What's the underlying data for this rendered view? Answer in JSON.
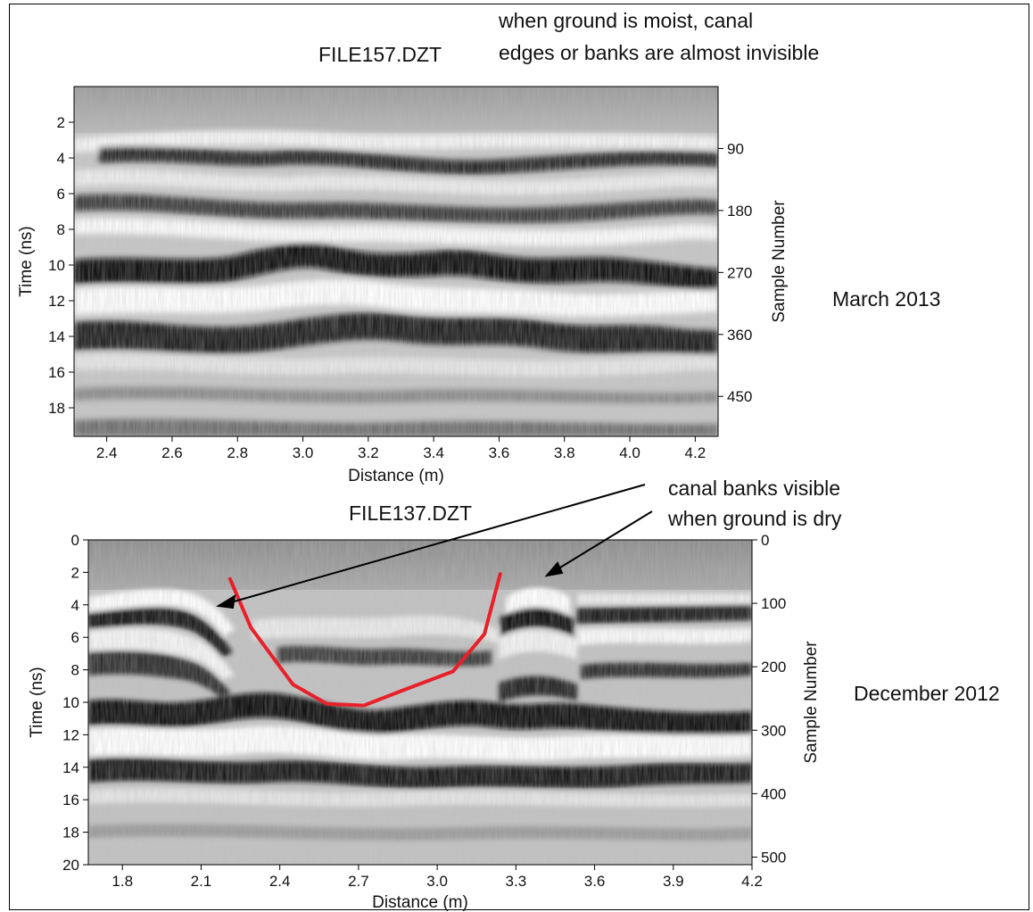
{
  "chart_data": [
    {
      "type": "heatmap",
      "title": "FILE157.DZT",
      "side_label": "March 2013",
      "annotation": [
        "when ground is moist, canal",
        "edges or banks are almost invisible"
      ],
      "xlabel": "Distance (m)",
      "ylabel": "Time (ns)",
      "y2label": "Sample Number",
      "xlim": [
        2.3,
        4.27
      ],
      "ylim": [
        0,
        19.6
      ],
      "x_ticks": [
        "2.4",
        "2.6",
        "2.8",
        "3.0",
        "3.2",
        "3.4",
        "3.6",
        "3.8",
        "4.0",
        "4.2"
      ],
      "y_ticks": [
        "2",
        "4",
        "6",
        "8",
        "10",
        "12",
        "14",
        "16",
        "18"
      ],
      "y2_ticks": [
        "90",
        "180",
        "270",
        "360",
        "450"
      ]
    },
    {
      "type": "heatmap",
      "title": "FILE137.DZT",
      "side_label": "December 2012",
      "annotation": [
        "canal banks visible",
        "when ground is dry"
      ],
      "xlabel": "Distance (m)",
      "ylabel": "Time (ns)",
      "y2label": "Sample Number",
      "xlim": [
        1.67,
        4.2
      ],
      "ylim": [
        0,
        20
      ],
      "x_ticks": [
        "1.8",
        "2.1",
        "2.4",
        "2.7",
        "3.0",
        "3.3",
        "3.6",
        "3.9",
        "4.2"
      ],
      "y_ticks": [
        "0",
        "2",
        "4",
        "6",
        "8",
        "10",
        "12",
        "14",
        "16",
        "18",
        "20"
      ],
      "y2_ticks": [
        "0",
        "100",
        "200",
        "300",
        "400",
        "500"
      ],
      "canal_outline": {
        "color": "#e8202a",
        "x": [
          2.21,
          2.29,
          2.45,
          2.58,
          2.72,
          2.88,
          3.06,
          3.18,
          3.24
        ],
        "y": [
          2.4,
          5.4,
          8.9,
          10.1,
          10.2,
          9.2,
          8.1,
          5.8,
          2.1
        ]
      }
    }
  ]
}
